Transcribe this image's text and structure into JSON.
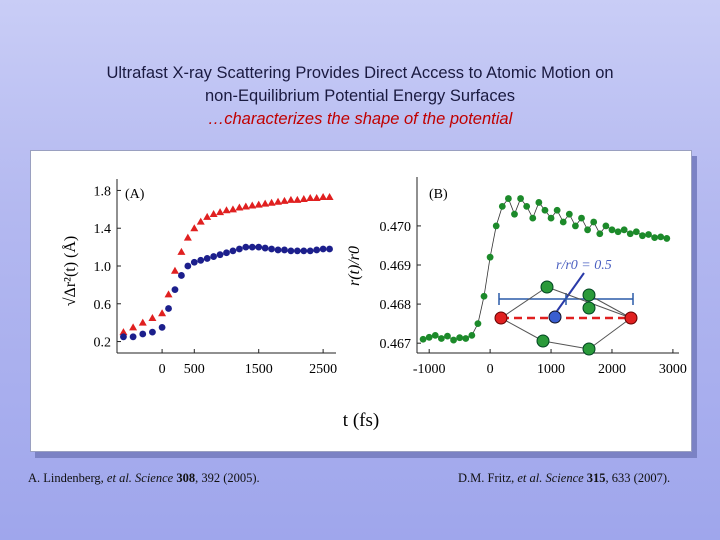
{
  "header": {
    "line1": "Ultrafast X-ray Scattering Provides Direct Access to Atomic Motion on",
    "line2": "non-Equilibrium Potential Energy Surfaces",
    "line3": "…characterizes the shape of the potential"
  },
  "colors": {
    "red": "#e02020",
    "blue": "#1c1f8c",
    "green": "#1c8a2a",
    "accent": "#c00000"
  },
  "figure": {
    "shared_xlabel": "t (fs)"
  },
  "chart_data": [
    {
      "type": "scatter",
      "panel_label": "(A)",
      "ylabel": "√Δr²(t) (Å)",
      "xlabel": "t (fs)",
      "xlim": [
        -700,
        2700
      ],
      "ylim": [
        0.1,
        1.9
      ],
      "xticks": [
        "0",
        "500",
        "1500",
        "2500"
      ],
      "yticks": [
        "1.8",
        "1.4",
        "1.0",
        "0.6",
        "0.2"
      ],
      "series": [
        {
          "name": "red",
          "color": "#e02020",
          "marker": "triangle",
          "x": [
            -600,
            -450,
            -300,
            -150,
            0,
            100,
            200,
            300,
            400,
            500,
            600,
            700,
            800,
            900,
            1000,
            1100,
            1200,
            1300,
            1400,
            1500,
            1600,
            1700,
            1800,
            1900,
            2000,
            2100,
            2200,
            2300,
            2400,
            2500,
            2600
          ],
          "y": [
            0.3,
            0.35,
            0.4,
            0.45,
            0.5,
            0.7,
            0.95,
            1.15,
            1.3,
            1.4,
            1.47,
            1.52,
            1.55,
            1.57,
            1.59,
            1.6,
            1.62,
            1.63,
            1.64,
            1.65,
            1.66,
            1.67,
            1.68,
            1.69,
            1.7,
            1.7,
            1.71,
            1.72,
            1.72,
            1.73,
            1.73
          ]
        },
        {
          "name": "blue",
          "color": "#1c1f8c",
          "marker": "circle",
          "x": [
            -600,
            -450,
            -300,
            -150,
            0,
            100,
            200,
            300,
            400,
            500,
            600,
            700,
            800,
            900,
            1000,
            1100,
            1200,
            1300,
            1400,
            1500,
            1600,
            1700,
            1800,
            1900,
            2000,
            2100,
            2200,
            2300,
            2400,
            2500,
            2600
          ],
          "y": [
            0.25,
            0.25,
            0.28,
            0.3,
            0.35,
            0.55,
            0.75,
            0.9,
            1.0,
            1.04,
            1.06,
            1.08,
            1.1,
            1.12,
            1.14,
            1.16,
            1.18,
            1.2,
            1.2,
            1.2,
            1.19,
            1.18,
            1.17,
            1.17,
            1.16,
            1.16,
            1.16,
            1.16,
            1.17,
            1.18,
            1.18
          ]
        }
      ]
    },
    {
      "type": "scatter",
      "panel_label": "(B)",
      "ylabel": "r(t)/r0",
      "xlabel": "t (fs)",
      "xlim": [
        -1200,
        3100
      ],
      "ylim": [
        0.4668,
        0.4712
      ],
      "xticks": [
        "-1000",
        "0",
        "1000",
        "2000",
        "3000"
      ],
      "yticks": [
        "0.470",
        "0.469",
        "0.468",
        "0.467"
      ],
      "annotation": "r/r0 = 0.5",
      "series": [
        {
          "name": "green",
          "color": "#1c8a2a",
          "marker": "circle",
          "x": [
            -1100,
            -1000,
            -900,
            -800,
            -700,
            -600,
            -500,
            -400,
            -300,
            -200,
            -100,
            0,
            100,
            200,
            300,
            400,
            500,
            600,
            700,
            800,
            900,
            1000,
            1100,
            1200,
            1300,
            1400,
            1500,
            1600,
            1700,
            1800,
            1900,
            2000,
            2100,
            2200,
            2300,
            2400,
            2500,
            2600,
            2700,
            2800,
            2900
          ],
          "y": [
            0.4671,
            0.46715,
            0.4672,
            0.46712,
            0.46718,
            0.46708,
            0.46714,
            0.46712,
            0.4672,
            0.4675,
            0.4682,
            0.4692,
            0.47,
            0.4705,
            0.4707,
            0.4703,
            0.4707,
            0.4705,
            0.4702,
            0.4706,
            0.4704,
            0.4702,
            0.4704,
            0.4701,
            0.4703,
            0.47,
            0.4702,
            0.4699,
            0.4701,
            0.4698,
            0.47,
            0.4699,
            0.46985,
            0.4699,
            0.4698,
            0.46985,
            0.46975,
            0.46978,
            0.4697,
            0.46972,
            0.46968
          ]
        }
      ]
    }
  ],
  "references": {
    "ref1": {
      "authors": "A. Lindenberg, ",
      "etal": "et al. Science ",
      "volume": "308",
      "pages": ", 392 (2005)."
    },
    "ref2": {
      "authors": "D.M. Fritz, ",
      "etal": "et al. Science ",
      "volume": "315",
      "pages": ", 633 (2007)."
    }
  }
}
